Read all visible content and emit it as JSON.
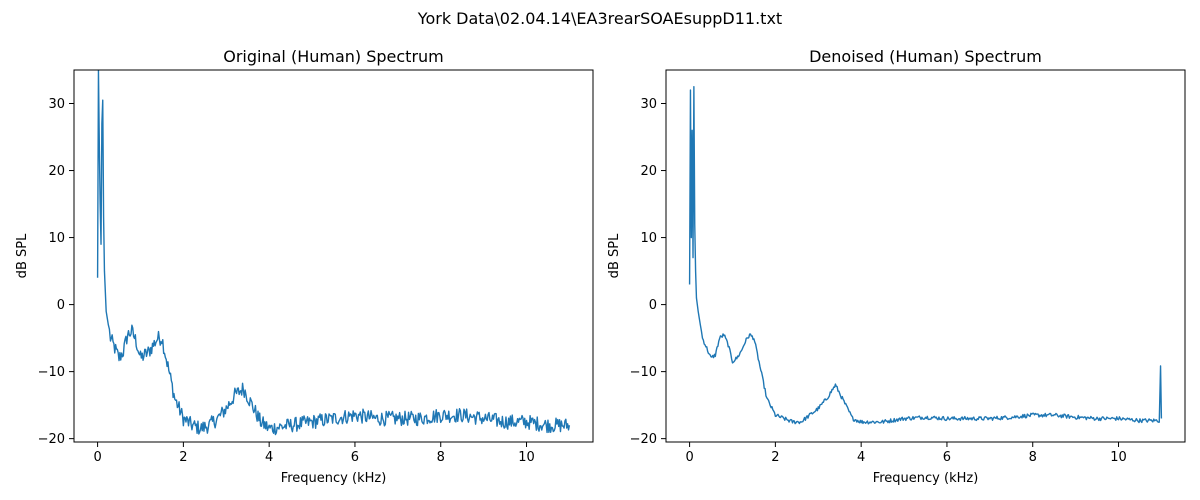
{
  "figure": {
    "suptitle": "York Data\\02.04.14\\EA3rearSOAEsuppD11.txt",
    "line_color": "#1f77b4"
  },
  "chart_data": [
    {
      "type": "line",
      "title": "Original (Human) Spectrum",
      "xlabel": "Frequency (kHz)",
      "ylabel": "dB SPL",
      "xlim": [
        -0.55,
        11.55
      ],
      "ylim": [
        -20.5,
        35
      ],
      "xticks": [
        0,
        2,
        4,
        6,
        8,
        10
      ],
      "yticks": [
        -20,
        -10,
        0,
        10,
        20,
        30
      ],
      "legend": "none",
      "grid": false,
      "series": [
        {
          "noise": 1.1,
          "x": [
            0,
            0.02,
            0.04,
            0.06,
            0.08,
            0.1,
            0.12,
            0.14,
            0.16,
            0.2,
            0.25,
            0.3,
            0.4,
            0.5,
            0.6,
            0.7,
            0.8,
            0.9,
            1.0,
            1.1,
            1.2,
            1.3,
            1.4,
            1.5,
            1.6,
            1.7,
            1.8,
            2.0,
            2.2,
            2.4,
            2.6,
            2.8,
            3.0,
            3.2,
            3.4,
            3.6,
            3.8,
            4.0,
            4.5,
            5.0,
            5.5,
            6.0,
            6.5,
            7.0,
            7.5,
            8.0,
            8.5,
            9.0,
            9.5,
            10.0,
            10.5,
            11.0
          ],
          "y": [
            4,
            35,
            24,
            15,
            9,
            27,
            30.5,
            13,
            5,
            -1,
            -3,
            -5,
            -6.5,
            -8,
            -7,
            -4.5,
            -4,
            -5.5,
            -8,
            -7.5,
            -7,
            -6,
            -5,
            -5,
            -8,
            -11,
            -14,
            -17,
            -18,
            -18.5,
            -18,
            -17,
            -15.5,
            -13.5,
            -12.5,
            -15,
            -17.5,
            -18.5,
            -18,
            -17.5,
            -17,
            -16.5,
            -17,
            -17,
            -17,
            -16.5,
            -16.5,
            -17,
            -17.5,
            -17.5,
            -18,
            -18
          ]
        }
      ]
    },
    {
      "type": "line",
      "title": "Denoised (Human) Spectrum",
      "xlabel": "Frequency (kHz)",
      "ylabel": "dB SPL",
      "xlim": [
        -0.55,
        11.55
      ],
      "ylim": [
        -20.5,
        35
      ],
      "xticks": [
        0,
        2,
        4,
        6,
        8,
        10
      ],
      "yticks": [
        -20,
        -10,
        0,
        10,
        20,
        30
      ],
      "legend": "none",
      "grid": false,
      "series": [
        {
          "noise": 0.3,
          "x": [
            0,
            0.02,
            0.04,
            0.06,
            0.08,
            0.1,
            0.12,
            0.14,
            0.16,
            0.2,
            0.25,
            0.3,
            0.4,
            0.5,
            0.6,
            0.7,
            0.8,
            0.9,
            1.0,
            1.1,
            1.2,
            1.3,
            1.4,
            1.5,
            1.6,
            1.7,
            1.8,
            2.0,
            2.2,
            2.4,
            2.6,
            2.8,
            3.0,
            3.2,
            3.4,
            3.6,
            3.8,
            4.0,
            4.5,
            5.0,
            5.5,
            6.0,
            6.5,
            7.0,
            7.5,
            8.0,
            8.5,
            9.0,
            9.5,
            10.0,
            10.5,
            10.95,
            10.98,
            11.0
          ],
          "y": [
            3,
            32,
            10,
            26,
            7,
            32.5,
            12,
            5,
            1,
            -1,
            -3,
            -5,
            -6.5,
            -8,
            -7.5,
            -5,
            -4.5,
            -6,
            -8.5,
            -8,
            -7,
            -5.5,
            -4.5,
            -5,
            -8,
            -11,
            -14,
            -16.5,
            -17,
            -17.5,
            -17.5,
            -16.5,
            -15.5,
            -14,
            -12,
            -14.5,
            -17,
            -17.5,
            -17.5,
            -17,
            -16.8,
            -17,
            -17,
            -17,
            -16.8,
            -16.5,
            -16.5,
            -16.8,
            -17,
            -17,
            -17.3,
            -17.3,
            -9,
            -17
          ]
        }
      ]
    }
  ]
}
